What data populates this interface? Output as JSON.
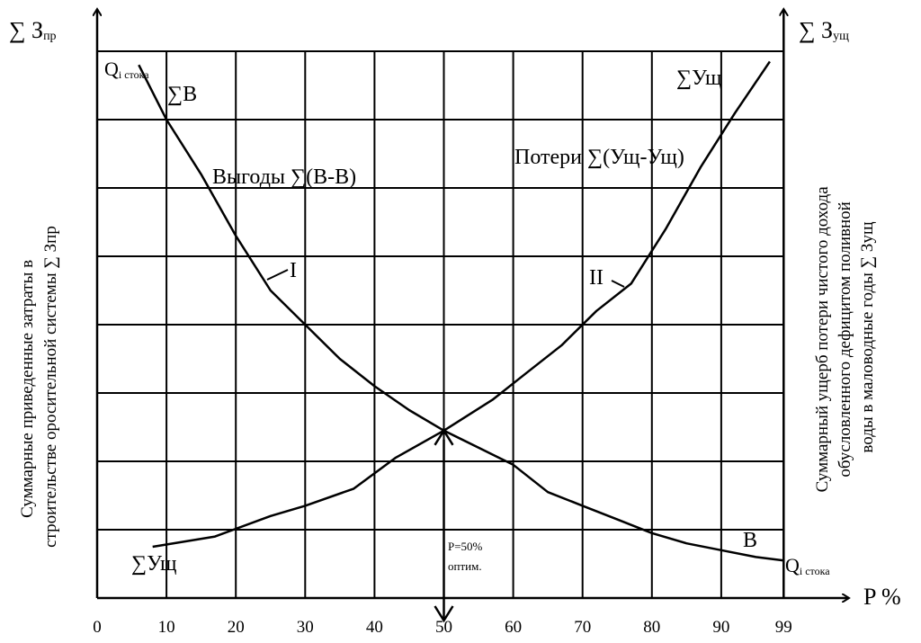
{
  "chart_data": {
    "type": "line",
    "x_ticks": [
      "0",
      "10",
      "20",
      "30",
      "40",
      "50",
      "60",
      "70",
      "80",
      "90",
      "99"
    ],
    "xlabel": "P %",
    "y_left_label": "∑ З",
    "y_left_label_sub": "пр",
    "y_right_label": "∑ З",
    "y_right_label_sub": "ущ",
    "left_axis_caption": [
      "Суммарные приведенные затраты в",
      "строительстве оросительной системы ∑ Зпр"
    ],
    "right_axis_caption": [
      "Суммарный ущерб потери чистого дохода",
      "обусловленного дефицитом поливной",
      "воды в маловодные годы ∑ Зущ"
    ],
    "grid": true,
    "grid_rows": 8,
    "series": [
      {
        "name": "I",
        "color": "#000000",
        "x": [
          6,
          10,
          15,
          20,
          25,
          30,
          35,
          40,
          45,
          50,
          55,
          60,
          65,
          70,
          75,
          80,
          85,
          90,
          95,
          99
        ],
        "y": [
          7.8,
          7.0,
          6.2,
          5.3,
          4.5,
          4.0,
          3.5,
          3.1,
          2.75,
          2.45,
          2.2,
          1.95,
          1.55,
          1.35,
          1.15,
          0.95,
          0.8,
          0.7,
          0.6,
          0.55
        ]
      },
      {
        "name": "II",
        "color": "#000000",
        "x": [
          8,
          17,
          25,
          30,
          37,
          43,
          50,
          57,
          62,
          67,
          72,
          77,
          82,
          87,
          92,
          97
        ],
        "y": [
          0.75,
          0.9,
          1.2,
          1.35,
          1.6,
          2.05,
          2.45,
          2.9,
          3.3,
          3.7,
          4.2,
          4.6,
          5.4,
          6.3,
          7.1,
          7.85
        ]
      }
    ],
    "annotations": {
      "q_top_left": "Q",
      "q_top_left_sub": "i стока",
      "sum_b": "∑В",
      "benefits": "Выгоды ∑(В-В)",
      "losses": "Потери ∑(Ущ-Ущ)",
      "sum_ush_top": "∑Ущ",
      "sum_ush_bottom": "∑Ущ",
      "curve_i": "I",
      "curve_ii": "II",
      "b_label": "В",
      "q_bottom_right": "Q",
      "q_bottom_right_sub": "i стока",
      "optimum_line1": "P=50%",
      "optimum_line2": "оптим.",
      "optimum_x": 50,
      "intersection_y": 2.45
    }
  }
}
